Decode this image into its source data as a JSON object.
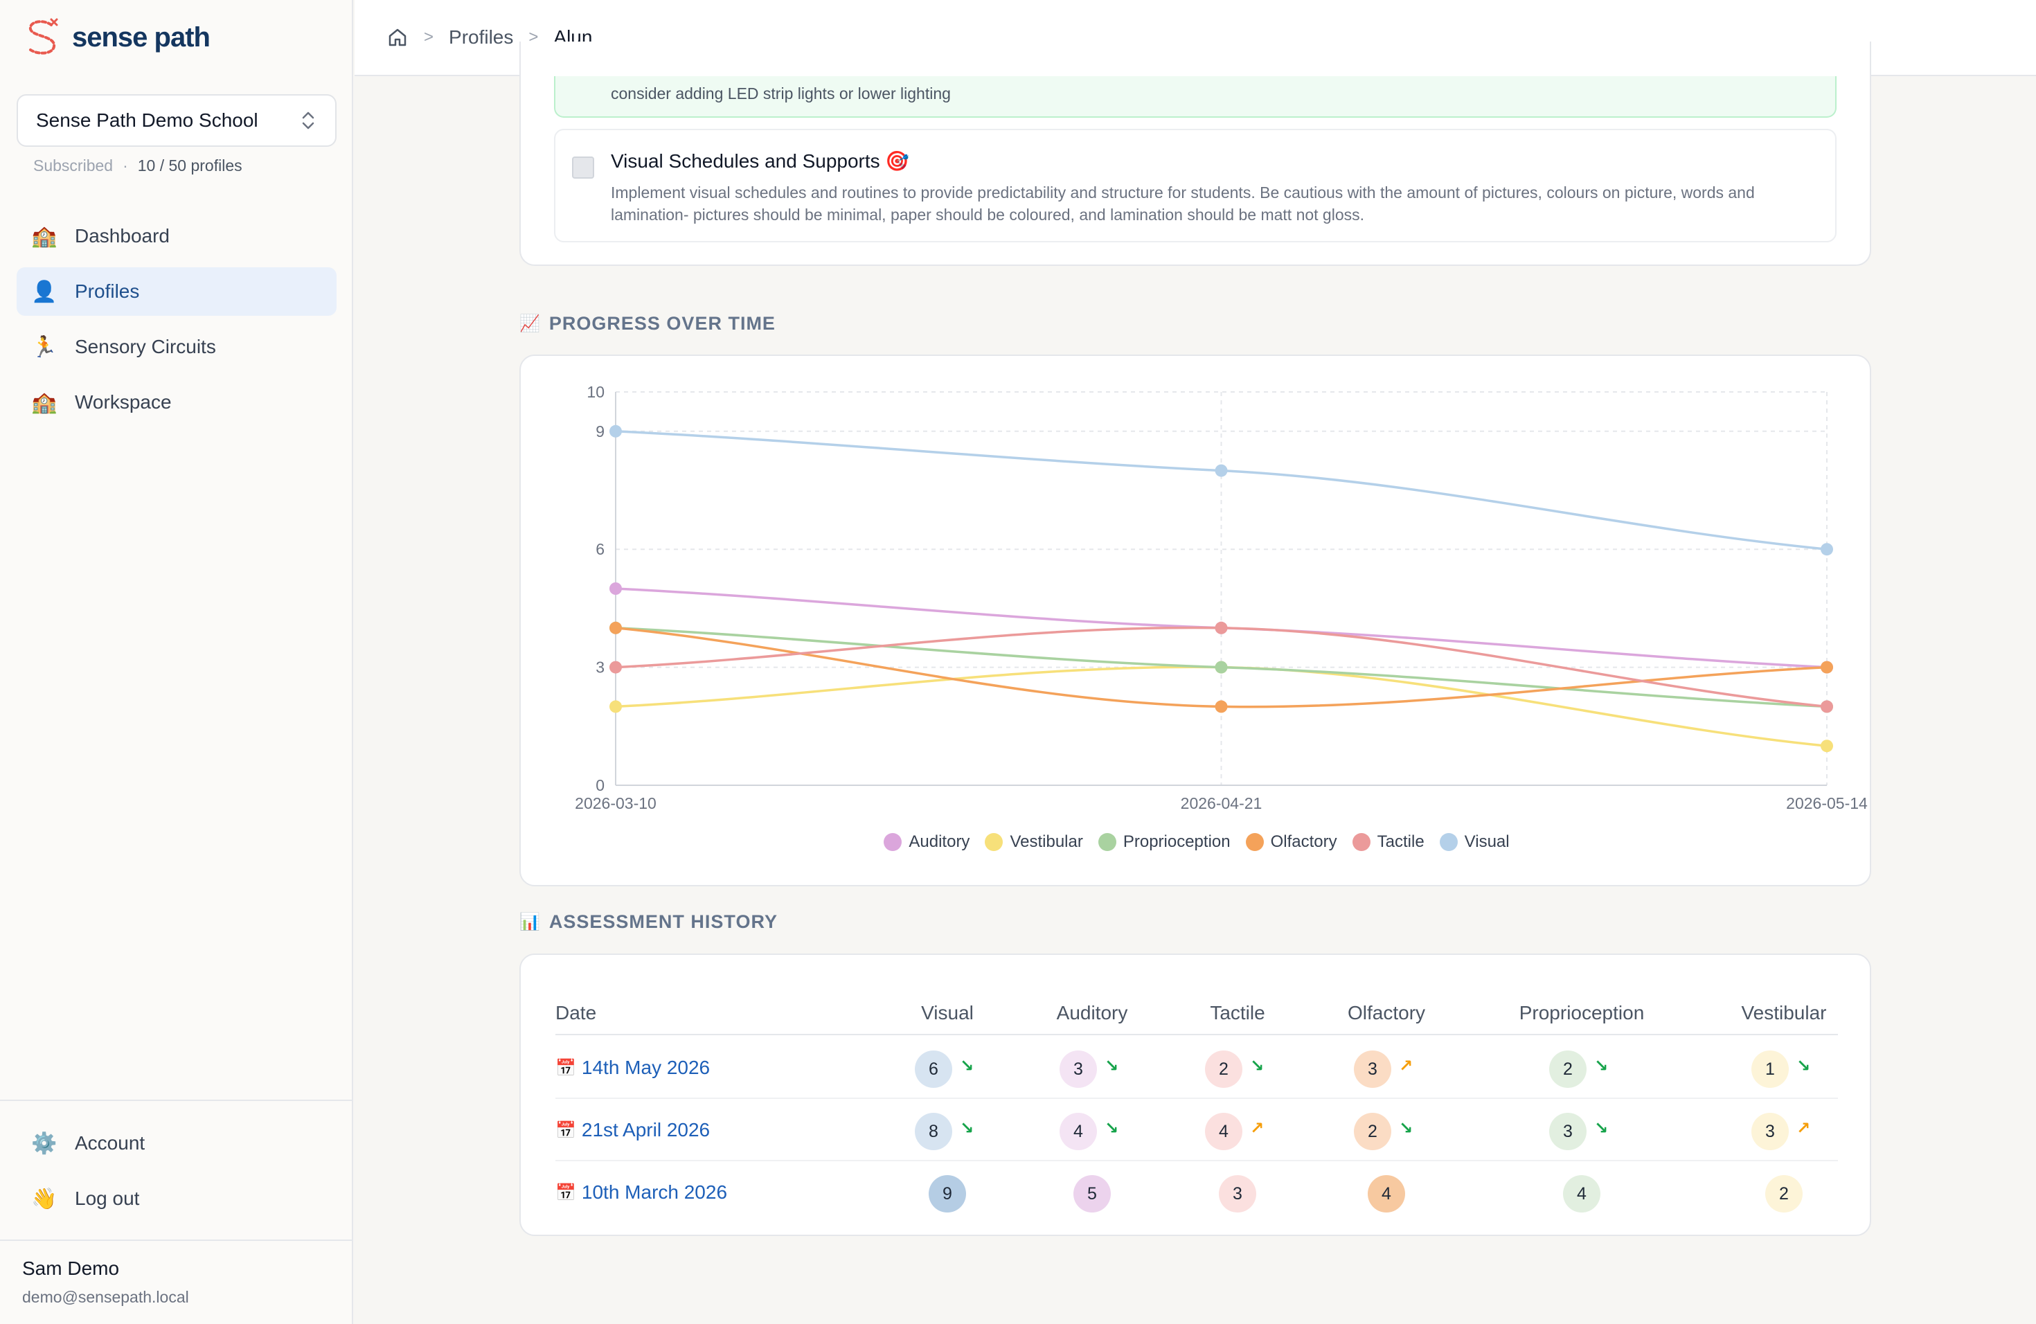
{
  "brand": {
    "name": "sense path",
    "logo_icon": "sense-path-logo"
  },
  "school_selector": {
    "name": "Sense Path Demo School",
    "icon": "chevron-up-down-icon"
  },
  "subscription": {
    "status": "Subscribed",
    "separator": "·",
    "profiles": "10 / 50 profiles"
  },
  "nav": [
    {
      "label": "Dashboard",
      "icon": "🏫",
      "active": false
    },
    {
      "label": "Profiles",
      "icon": "👤",
      "active": true
    },
    {
      "label": "Sensory Circuits",
      "icon": "🏃",
      "active": false
    },
    {
      "label": "Workspace",
      "icon": "🏫",
      "active": false
    }
  ],
  "bottom_nav": [
    {
      "label": "Account",
      "icon": "⚙️"
    },
    {
      "label": "Log out",
      "icon": "👋"
    }
  ],
  "user": {
    "name": "Sam Demo",
    "email": "demo@sensepath.local"
  },
  "breadcrumb": {
    "home_icon": "home-icon",
    "profiles": "Profiles",
    "current": "Alun",
    "separator": ">"
  },
  "recommendations": {
    "prev_text": "consider adding LED strip lights or lower lighting",
    "item": {
      "title": "Visual Schedules and Supports 🎯",
      "description": "Implement visual schedules and routines to provide predictability and structure for students. Be cautious with the amount of pictures, colours on picture, words and lamination- pictures should be minimal, paper should be coloured, and lamination should be matt not gloss."
    }
  },
  "progress_section": {
    "icon": "📈",
    "title": "PROGRESS OVER TIME"
  },
  "history_section": {
    "icon": "📊",
    "title": "ASSESSMENT HISTORY"
  },
  "chart_data": {
    "type": "line",
    "x": [
      "2026-03-10",
      "2026-04-21",
      "2026-05-14"
    ],
    "ylim": [
      0,
      10
    ],
    "yticks": [
      0,
      3,
      6,
      9,
      10
    ],
    "grid": true,
    "legend_position": "bottom",
    "series": [
      {
        "name": "Auditory",
        "color": "#dba6dc",
        "values": [
          5,
          4,
          3
        ]
      },
      {
        "name": "Vestibular",
        "color": "#f7e07a",
        "values": [
          2,
          3,
          1
        ]
      },
      {
        "name": "Proprioception",
        "color": "#a9d2a0",
        "values": [
          4,
          3,
          2
        ]
      },
      {
        "name": "Olfactory",
        "color": "#f4a25a",
        "values": [
          4,
          2,
          3
        ]
      },
      {
        "name": "Tactile",
        "color": "#eb9a9a",
        "values": [
          3,
          4,
          2
        ]
      },
      {
        "name": "Visual",
        "color": "#b4d0e9",
        "values": [
          9,
          8,
          6
        ]
      }
    ]
  },
  "table": {
    "headers": [
      "Date",
      "Visual",
      "Auditory",
      "Tactile",
      "Olfactory",
      "Proprioception",
      "Vestibular"
    ],
    "colors": {
      "Visual": "#d7e4f1",
      "Auditory": "#f4e4f4",
      "Tactile": "#fbe0df",
      "Olfactory": "#fbdcc4",
      "Proprioception": "#e2efe0",
      "Vestibular": "#fdf4d8"
    },
    "strong_colors": {
      "Visual": "#b5cde4",
      "Auditory": "#ecd3ed",
      "Tactile": "#fbe0df",
      "Olfactory": "#f7c9a0",
      "Proprioception": "#e2efe0",
      "Vestibular": "#fdf4d8"
    },
    "rows": [
      {
        "icon": "📅",
        "date": "14th May 2026",
        "scores": [
          6,
          3,
          2,
          3,
          2,
          1
        ],
        "trends": [
          "down",
          "down",
          "down",
          "up",
          "down",
          "down"
        ]
      },
      {
        "icon": "📅",
        "date": "21st April 2026",
        "scores": [
          8,
          4,
          4,
          2,
          3,
          3
        ],
        "trends": [
          "down",
          "down",
          "up",
          "down",
          "down",
          "up"
        ]
      },
      {
        "icon": "📅",
        "date": "10th March 2026",
        "scores": [
          9,
          5,
          3,
          4,
          4,
          2
        ],
        "trends": [
          "",
          "",
          "",
          "",
          "",
          ""
        ]
      }
    ],
    "trend_glyphs": {
      "down": "↘",
      "up": "↗"
    }
  }
}
